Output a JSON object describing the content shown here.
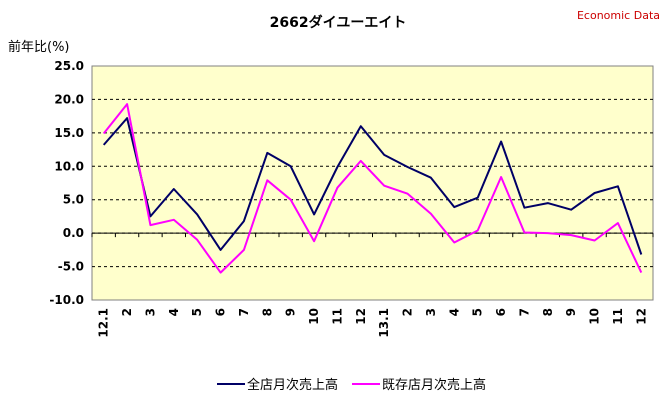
{
  "header": {
    "title": "2662ダイユーエイト",
    "source": "Economic Data"
  },
  "chart_data": {
    "type": "line",
    "title": "2662ダイユーエイト",
    "ylabel": "前年比(%)",
    "ylim": [
      -10.0,
      25.0
    ],
    "yticks": [
      "25.0",
      "20.0",
      "15.0",
      "10.0",
      "5.0",
      "0.0",
      "-5.0",
      "-10.0"
    ],
    "categories": [
      "12.1",
      "2",
      "3",
      "4",
      "5",
      "6",
      "7",
      "8",
      "9",
      "10",
      "11",
      "12",
      "13.1",
      "2",
      "3",
      "4",
      "5",
      "6",
      "7",
      "8",
      "9",
      "10",
      "11",
      "12"
    ],
    "grid": true,
    "legend_position": "bottom",
    "series": [
      {
        "name": "全店月次売上高",
        "color": "#000066",
        "values": [
          13.2,
          17.2,
          2.5,
          6.6,
          2.8,
          -2.5,
          1.8,
          12.0,
          10.0,
          2.8,
          9.9,
          16.0,
          11.7,
          9.9,
          8.3,
          3.9,
          5.3,
          13.7,
          3.8,
          4.5,
          3.5,
          6.0,
          7.0,
          -3.2
        ]
      },
      {
        "name": "既存店月次売上高",
        "color": "#ff00ff",
        "values": [
          14.9,
          19.3,
          1.2,
          2.0,
          -1.0,
          -5.9,
          -2.5,
          7.9,
          5.0,
          -1.2,
          6.8,
          10.8,
          7.1,
          5.9,
          2.9,
          -1.4,
          0.4,
          8.4,
          0.1,
          0.0,
          -0.3,
          -1.1,
          1.5,
          -5.9
        ]
      }
    ]
  }
}
